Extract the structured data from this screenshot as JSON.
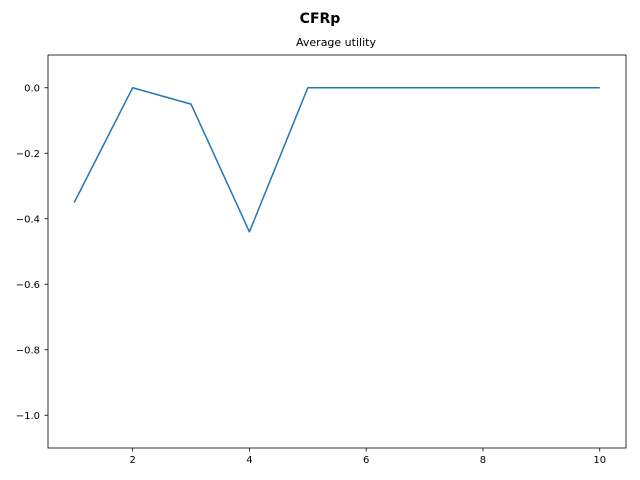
{
  "chart_data": {
    "type": "line",
    "title": "CFRp",
    "subtitle": "Average utility",
    "xlabel": "",
    "ylabel": "",
    "xlim": [
      0.55,
      10.45
    ],
    "ylim": [
      -1.1,
      0.1
    ],
    "xticks": [
      2,
      4,
      6,
      8,
      10
    ],
    "yticks": [
      0.0,
      -0.2,
      -0.4,
      -0.6,
      -0.8,
      -1.0
    ],
    "xtick_labels": [
      "2",
      "4",
      "6",
      "8",
      "10"
    ],
    "ytick_labels": [
      "0.0",
      "−0.2",
      "−0.4",
      "−0.6",
      "−0.8",
      "−1.0"
    ],
    "grid": false,
    "series": [
      {
        "color": "#1f77b4",
        "x": [
          1,
          2,
          3,
          4,
          5,
          6,
          7,
          8,
          9,
          10
        ],
        "y": [
          -0.35,
          0.0,
          -0.05,
          -0.44,
          0.0,
          0.0,
          0.0,
          0.0,
          0.0,
          0.0
        ]
      }
    ]
  }
}
